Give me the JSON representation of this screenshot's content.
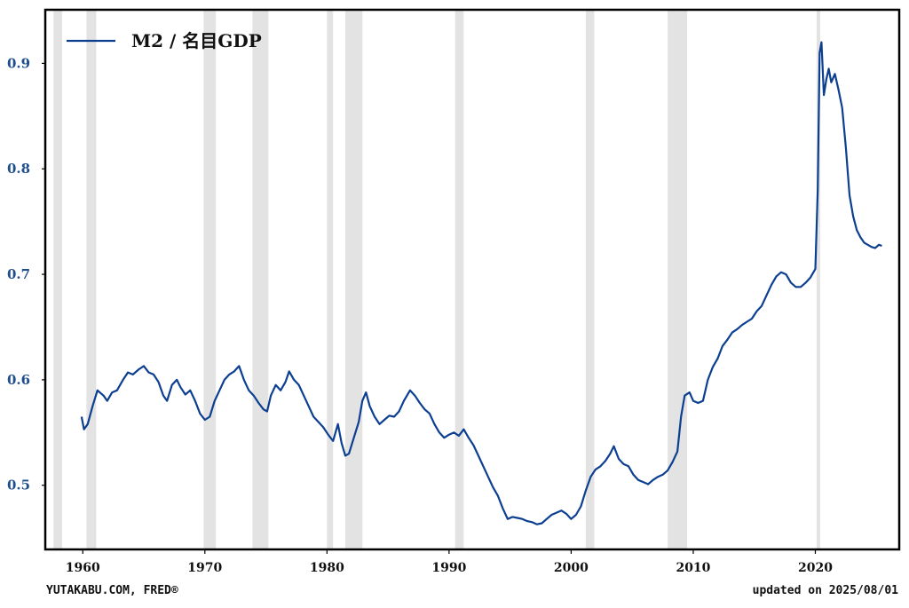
{
  "chart_data": {
    "type": "line",
    "title": "",
    "xlabel": "",
    "ylabel": "",
    "xlim": [
      1957.0,
      2026.8
    ],
    "ylim": [
      0.44,
      0.95
    ],
    "x_ticks": [
      1960,
      1970,
      1980,
      1990,
      2000,
      2010,
      2020
    ],
    "x_tick_labels": [
      "1960",
      "1970",
      "1980",
      "1990",
      "2000",
      "2010",
      "2020"
    ],
    "y_ticks": [
      0.5,
      0.6,
      0.7,
      0.8,
      0.9
    ],
    "y_tick_labels": [
      "0.5",
      "0.6",
      "0.7",
      "0.8",
      "0.9"
    ],
    "grid": false,
    "legend_position": "top-left",
    "recession_shading": [
      [
        1957.6,
        1958.3
      ],
      [
        1960.3,
        1961.1
      ],
      [
        1969.9,
        1970.9
      ],
      [
        1973.9,
        1975.2
      ],
      [
        1980.0,
        1980.5
      ],
      [
        1981.5,
        1982.9
      ],
      [
        1990.5,
        1991.2
      ],
      [
        2001.2,
        2001.9
      ],
      [
        2007.9,
        2009.5
      ],
      [
        2020.1,
        2020.4
      ]
    ],
    "series": [
      {
        "name": "M2 / 名目GDP",
        "color": "#0d3f91",
        "points": [
          [
            1959.9,
            0.565
          ],
          [
            1960.1,
            0.553
          ],
          [
            1960.4,
            0.558
          ],
          [
            1960.8,
            0.575
          ],
          [
            1961.2,
            0.59
          ],
          [
            1961.7,
            0.585
          ],
          [
            1962.0,
            0.58
          ],
          [
            1962.4,
            0.588
          ],
          [
            1962.8,
            0.59
          ],
          [
            1963.3,
            0.6
          ],
          [
            1963.7,
            0.607
          ],
          [
            1964.1,
            0.605
          ],
          [
            1964.6,
            0.61
          ],
          [
            1965.0,
            0.613
          ],
          [
            1965.4,
            0.607
          ],
          [
            1965.8,
            0.605
          ],
          [
            1966.2,
            0.598
          ],
          [
            1966.6,
            0.585
          ],
          [
            1966.9,
            0.58
          ],
          [
            1967.3,
            0.595
          ],
          [
            1967.7,
            0.6
          ],
          [
            1968.0,
            0.593
          ],
          [
            1968.4,
            0.586
          ],
          [
            1968.8,
            0.59
          ],
          [
            1969.2,
            0.58
          ],
          [
            1969.6,
            0.568
          ],
          [
            1970.0,
            0.562
          ],
          [
            1970.4,
            0.565
          ],
          [
            1970.8,
            0.58
          ],
          [
            1971.2,
            0.59
          ],
          [
            1971.6,
            0.6
          ],
          [
            1972.0,
            0.605
          ],
          [
            1972.4,
            0.608
          ],
          [
            1972.8,
            0.613
          ],
          [
            1973.2,
            0.6
          ],
          [
            1973.6,
            0.59
          ],
          [
            1974.0,
            0.585
          ],
          [
            1974.4,
            0.578
          ],
          [
            1974.8,
            0.572
          ],
          [
            1975.1,
            0.57
          ],
          [
            1975.4,
            0.585
          ],
          [
            1975.8,
            0.595
          ],
          [
            1976.2,
            0.59
          ],
          [
            1976.6,
            0.598
          ],
          [
            1976.9,
            0.608
          ],
          [
            1977.3,
            0.6
          ],
          [
            1977.7,
            0.595
          ],
          [
            1978.1,
            0.585
          ],
          [
            1978.5,
            0.575
          ],
          [
            1978.9,
            0.565
          ],
          [
            1979.3,
            0.56
          ],
          [
            1979.7,
            0.555
          ],
          [
            1980.1,
            0.548
          ],
          [
            1980.5,
            0.542
          ],
          [
            1980.9,
            0.558
          ],
          [
            1981.2,
            0.54
          ],
          [
            1981.5,
            0.528
          ],
          [
            1981.8,
            0.53
          ],
          [
            1982.2,
            0.545
          ],
          [
            1982.6,
            0.56
          ],
          [
            1982.9,
            0.58
          ],
          [
            1983.2,
            0.588
          ],
          [
            1983.5,
            0.575
          ],
          [
            1983.9,
            0.565
          ],
          [
            1984.3,
            0.558
          ],
          [
            1984.7,
            0.562
          ],
          [
            1985.1,
            0.566
          ],
          [
            1985.5,
            0.565
          ],
          [
            1985.9,
            0.57
          ],
          [
            1986.3,
            0.58
          ],
          [
            1986.8,
            0.59
          ],
          [
            1987.2,
            0.585
          ],
          [
            1987.6,
            0.578
          ],
          [
            1988.0,
            0.572
          ],
          [
            1988.4,
            0.568
          ],
          [
            1988.8,
            0.558
          ],
          [
            1989.2,
            0.55
          ],
          [
            1989.6,
            0.545
          ],
          [
            1990.0,
            0.548
          ],
          [
            1990.4,
            0.55
          ],
          [
            1990.8,
            0.547
          ],
          [
            1991.2,
            0.553
          ],
          [
            1991.6,
            0.545
          ],
          [
            1992.0,
            0.538
          ],
          [
            1992.4,
            0.528
          ],
          [
            1992.8,
            0.518
          ],
          [
            1993.2,
            0.508
          ],
          [
            1993.6,
            0.498
          ],
          [
            1994.0,
            0.49
          ],
          [
            1994.4,
            0.478
          ],
          [
            1994.8,
            0.468
          ],
          [
            1995.2,
            0.47
          ],
          [
            1995.6,
            0.469
          ],
          [
            1996.0,
            0.468
          ],
          [
            1996.4,
            0.466
          ],
          [
            1996.8,
            0.465
          ],
          [
            1997.2,
            0.463
          ],
          [
            1997.6,
            0.464
          ],
          [
            1998.0,
            0.468
          ],
          [
            1998.4,
            0.472
          ],
          [
            1998.8,
            0.474
          ],
          [
            1999.2,
            0.476
          ],
          [
            1999.6,
            0.473
          ],
          [
            2000.0,
            0.468
          ],
          [
            2000.4,
            0.472
          ],
          [
            2000.8,
            0.48
          ],
          [
            2001.2,
            0.495
          ],
          [
            2001.6,
            0.508
          ],
          [
            2002.0,
            0.515
          ],
          [
            2002.4,
            0.518
          ],
          [
            2002.8,
            0.523
          ],
          [
            2003.2,
            0.53
          ],
          [
            2003.5,
            0.537
          ],
          [
            2003.9,
            0.525
          ],
          [
            2004.3,
            0.52
          ],
          [
            2004.7,
            0.518
          ],
          [
            2005.1,
            0.51
          ],
          [
            2005.5,
            0.505
          ],
          [
            2005.9,
            0.503
          ],
          [
            2006.3,
            0.501
          ],
          [
            2006.7,
            0.505
          ],
          [
            2007.1,
            0.508
          ],
          [
            2007.5,
            0.51
          ],
          [
            2007.9,
            0.514
          ],
          [
            2008.3,
            0.522
          ],
          [
            2008.7,
            0.532
          ],
          [
            2009.0,
            0.565
          ],
          [
            2009.3,
            0.585
          ],
          [
            2009.7,
            0.588
          ],
          [
            2010.0,
            0.58
          ],
          [
            2010.4,
            0.578
          ],
          [
            2010.8,
            0.58
          ],
          [
            2011.2,
            0.6
          ],
          [
            2011.6,
            0.612
          ],
          [
            2012.0,
            0.62
          ],
          [
            2012.4,
            0.632
          ],
          [
            2012.8,
            0.638
          ],
          [
            2013.2,
            0.645
          ],
          [
            2013.6,
            0.648
          ],
          [
            2014.0,
            0.652
          ],
          [
            2014.4,
            0.655
          ],
          [
            2014.8,
            0.658
          ],
          [
            2015.2,
            0.665
          ],
          [
            2015.6,
            0.67
          ],
          [
            2016.0,
            0.68
          ],
          [
            2016.4,
            0.69
          ],
          [
            2016.8,
            0.698
          ],
          [
            2017.2,
            0.702
          ],
          [
            2017.6,
            0.7
          ],
          [
            2018.0,
            0.692
          ],
          [
            2018.4,
            0.688
          ],
          [
            2018.8,
            0.688
          ],
          [
            2019.2,
            0.692
          ],
          [
            2019.6,
            0.697
          ],
          [
            2020.0,
            0.705
          ],
          [
            2020.2,
            0.78
          ],
          [
            2020.35,
            0.91
          ],
          [
            2020.5,
            0.92
          ],
          [
            2020.7,
            0.87
          ],
          [
            2020.9,
            0.885
          ],
          [
            2021.1,
            0.895
          ],
          [
            2021.3,
            0.882
          ],
          [
            2021.6,
            0.89
          ],
          [
            2021.9,
            0.875
          ],
          [
            2022.2,
            0.858
          ],
          [
            2022.5,
            0.82
          ],
          [
            2022.8,
            0.775
          ],
          [
            2023.1,
            0.755
          ],
          [
            2023.4,
            0.742
          ],
          [
            2023.7,
            0.735
          ],
          [
            2024.0,
            0.73
          ],
          [
            2024.3,
            0.728
          ],
          [
            2024.6,
            0.726
          ],
          [
            2024.9,
            0.725
          ],
          [
            2025.2,
            0.728
          ],
          [
            2025.45,
            0.727
          ]
        ]
      }
    ]
  },
  "footer": {
    "source": "YUTAKABU.COM, FRED®",
    "updated": "updated on 2025/08/01"
  }
}
